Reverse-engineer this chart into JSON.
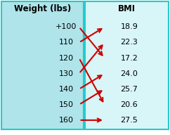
{
  "left_header": "Weight (lbs)",
  "right_header": "BMI",
  "left_values": [
    "+100",
    "110",
    "120",
    "130",
    "140",
    "150",
    "160"
  ],
  "right_values": [
    "18.9",
    "22.3",
    "17.2",
    "24.0",
    "25.7",
    "20.6",
    "27.5"
  ],
  "arrows": [
    [
      0,
      2
    ],
    [
      1,
      0
    ],
    [
      2,
      5
    ],
    [
      3,
      1
    ],
    [
      4,
      3
    ],
    [
      5,
      4
    ],
    [
      6,
      6
    ]
  ],
  "left_bg": "#aee4ea",
  "right_bg": "#d8f5f7",
  "arrow_color": "#cc0000",
  "header_color": "#000000",
  "value_color": "#000000",
  "border_color": "#22cccc",
  "fig_bg": "#ffffff"
}
